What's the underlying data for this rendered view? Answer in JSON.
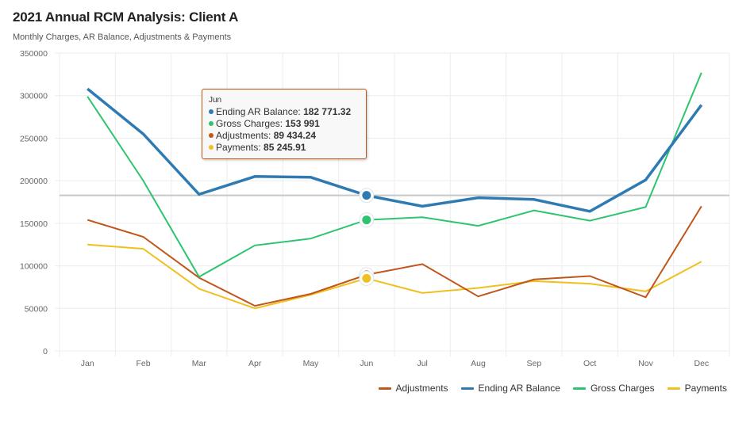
{
  "header": {
    "title": "2021 Annual RCM Analysis: Client A",
    "subtitle": "Monthly Charges, AR Balance, Adjustments & Payments"
  },
  "tooltip": {
    "category": "Jun",
    "rows": [
      {
        "series": "Ending AR Balance",
        "label": "Ending AR Balance: ",
        "value": "182 771.32",
        "color": "#2e7bb4"
      },
      {
        "series": "Gross Charges",
        "label": "Gross Charges: ",
        "value": "153 991",
        "color": "#2ec46f"
      },
      {
        "series": "Adjustments",
        "label": "Adjustments: ",
        "value": "89 434.24",
        "color": "#c0561a"
      },
      {
        "series": "Payments",
        "label": "Payments: ",
        "value": "85 245.91",
        "color": "#f0c020"
      }
    ]
  },
  "legend": [
    {
      "label": "Adjustments",
      "color": "#c0561a"
    },
    {
      "label": "Ending AR Balance",
      "color": "#2e7bb4"
    },
    {
      "label": "Gross Charges",
      "color": "#2ec46f"
    },
    {
      "label": "Payments",
      "color": "#f0c020"
    }
  ],
  "chart_data": {
    "type": "line",
    "title": "2021 Annual RCM Analysis: Client A",
    "subtitle": "Monthly Charges, AR Balance, Adjustments & Payments",
    "xlabel": "",
    "ylabel": "",
    "categories": [
      "Jan",
      "Feb",
      "Mar",
      "Apr",
      "May",
      "Jun",
      "Jul",
      "Aug",
      "Sep",
      "Oct",
      "Nov",
      "Dec"
    ],
    "ylim": [
      0,
      350000
    ],
    "yticks": [
      0,
      50000,
      100000,
      150000,
      200000,
      250000,
      300000,
      350000
    ],
    "ytick_labels": [
      "0",
      "50000",
      "100000",
      "150000",
      "200000",
      "250000",
      "300000",
      "350000"
    ],
    "grid": true,
    "legend_position": "bottom-right",
    "highlight_category": "Jun",
    "crosshair_value": 182771.32,
    "series": [
      {
        "name": "Adjustments",
        "color": "#c0561a",
        "values": [
          154000,
          134000,
          86000,
          53000,
          67000,
          89434.24,
          102000,
          64000,
          84000,
          88000,
          63000,
          170000
        ]
      },
      {
        "name": "Ending AR Balance",
        "color": "#2e7bb4",
        "values": [
          308000,
          255000,
          184000,
          205000,
          204000,
          182771.32,
          170000,
          180000,
          178000,
          164000,
          201000,
          289000
        ]
      },
      {
        "name": "Gross Charges",
        "color": "#2ec46f",
        "values": [
          299000,
          200000,
          87000,
          124000,
          132000,
          153991,
          157000,
          147000,
          165000,
          153000,
          169000,
          327000
        ]
      },
      {
        "name": "Payments",
        "color": "#f0c020",
        "values": [
          125000,
          120000,
          73000,
          50000,
          66000,
          85245.91,
          68000,
          74000,
          82000,
          79000,
          70000,
          105000
        ]
      }
    ]
  }
}
